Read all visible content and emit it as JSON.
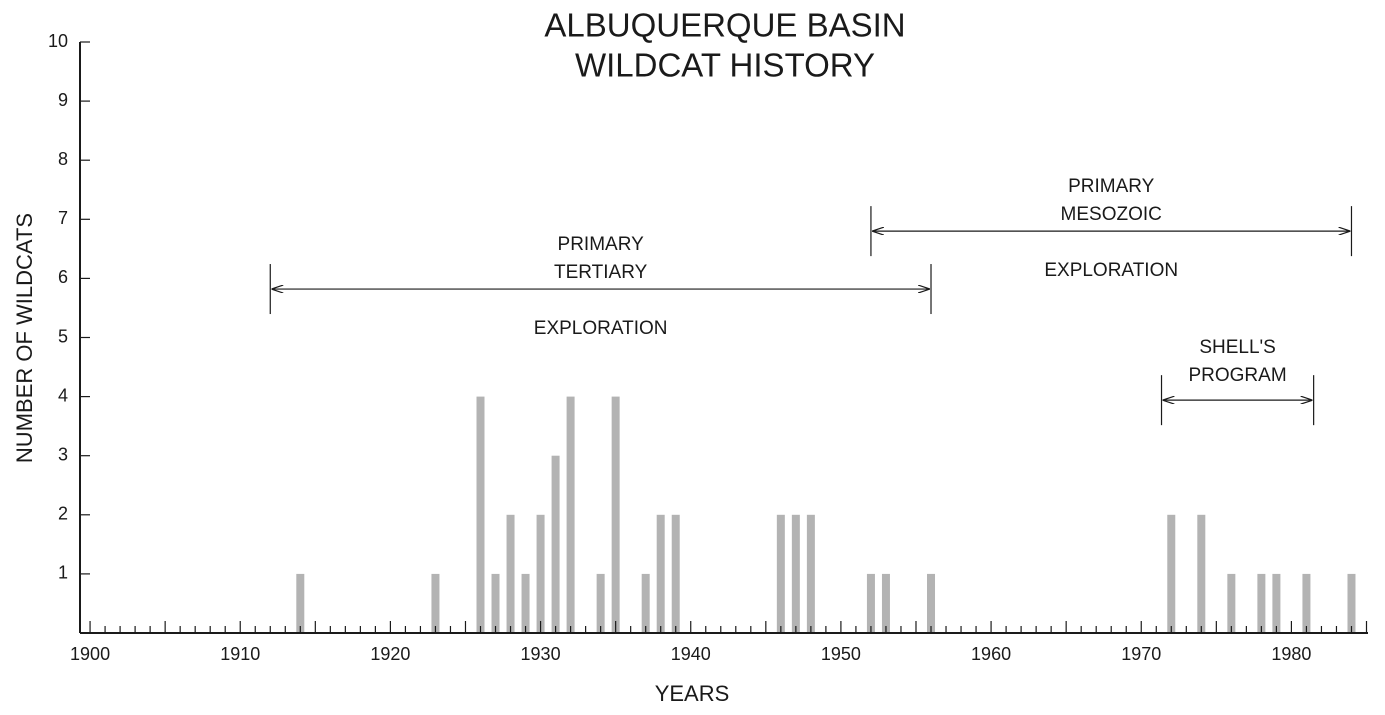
{
  "chart_data": {
    "type": "bar",
    "title": [
      "ALBUQUERQUE BASIN",
      "WILDCAT HISTORY"
    ],
    "xlabel": "YEARS",
    "ylabel": "NUMBER OF WILDCATS",
    "x": [
      1914,
      1923,
      1926,
      1927,
      1928,
      1929,
      1930,
      1931,
      1932,
      1934,
      1935,
      1937,
      1938,
      1939,
      1946,
      1947,
      1948,
      1952,
      1953,
      1956,
      1972,
      1974,
      1976,
      1978,
      1979,
      1981,
      1984
    ],
    "values": [
      1,
      1,
      4,
      1,
      2,
      1,
      2,
      3,
      4,
      1,
      4,
      1,
      2,
      2,
      2,
      2,
      2,
      1,
      1,
      1,
      2,
      2,
      1,
      1,
      1,
      1,
      1
    ],
    "color": "#b3b3b3",
    "xlim": [
      1899.33,
      1985.1
    ],
    "ylim": [
      0,
      10
    ],
    "xticks": [
      1900,
      1910,
      1920,
      1930,
      1940,
      1950,
      1960,
      1970,
      1980
    ],
    "xminorticks": [
      1901,
      1902,
      1903,
      1904,
      1905,
      1906,
      1907,
      1908,
      1909,
      1911,
      1912,
      1913,
      1914,
      1915,
      1916,
      1917,
      1918,
      1919,
      1921,
      1922,
      1923,
      1924,
      1925,
      1926,
      1927,
      1928,
      1929,
      1931,
      1932,
      1933,
      1934,
      1935,
      1936,
      1937,
      1938,
      1939,
      1941,
      1942,
      1943,
      1944,
      1945,
      1946,
      1947,
      1948,
      1949,
      1951,
      1952,
      1953,
      1954,
      1955,
      1956,
      1957,
      1958,
      1959,
      1961,
      1962,
      1963,
      1964,
      1965,
      1966,
      1967,
      1968,
      1969,
      1971,
      1972,
      1973,
      1974,
      1975,
      1976,
      1977,
      1978,
      1979,
      1981,
      1982,
      1983,
      1984,
      1985
    ],
    "yticks": [
      1,
      2,
      3,
      4,
      5,
      6,
      7,
      8,
      9,
      10
    ],
    "grid": false,
    "annotations": [
      {
        "text": [
          "PRIMARY",
          "TERTIARY",
          "EXPLORATION"
        ],
        "start": 1912,
        "end": 1956,
        "y": 5.82
      },
      {
        "text": [
          "PRIMARY",
          "MESOZOIC",
          "EXPLORATION"
        ],
        "start": 1952,
        "end": 1984,
        "y": 6.8
      },
      {
        "text": [
          "SHELL'S",
          "PROGRAM"
        ],
        "start": 1971.35,
        "end": 1981.48,
        "y": 3.94
      }
    ]
  }
}
